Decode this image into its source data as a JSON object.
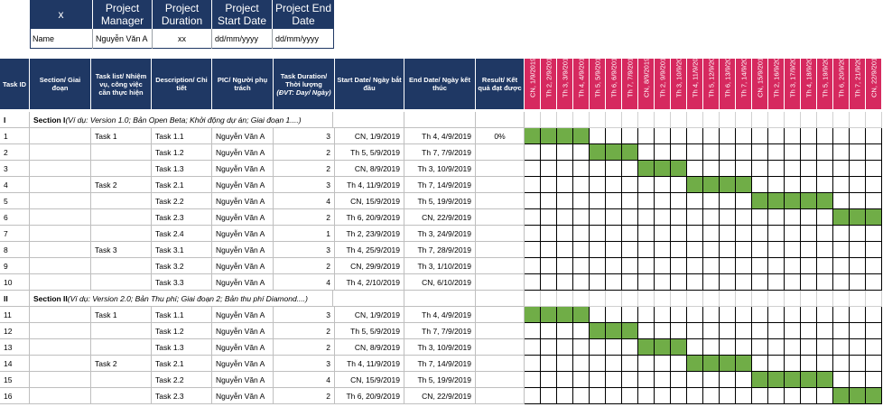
{
  "project": {
    "headers": [
      "x",
      "Project Manager",
      "Project Duration",
      "Project Start Date",
      "Project End Date"
    ],
    "values": [
      "Name",
      "Nguyễn Văn A",
      "xx",
      "dd/mm/yyyy",
      "dd/mm/yyyy"
    ]
  },
  "columns": {
    "task_id": "Task ID",
    "section": "Section/ Giai đoạn",
    "task_list": "Task list/ Nhiệm vụ, công việc cần thực hiện",
    "description": "Description/ Chi tiết",
    "pic": "PIC/ Người phụ trách",
    "duration": "Task Duration/ Thời lượng",
    "duration_unit": "(ĐVT: Day/ Ngày)",
    "start": "Start Date/ Ngày bắt đầu",
    "end": "End Date/ Ngày kết thúc",
    "result": "Result/ Kết quả đạt được"
  },
  "dates": [
    "CN, 1/9/2019",
    "Th 2, 2/9/2019",
    "Th 3, 3/9/2019",
    "Th 4, 4/9/2019",
    "Th 5, 5/9/2019",
    "Th 6, 6/9/2019",
    "Th 7, 7/9/2019",
    "CN, 8/9/2019",
    "Th 2, 9/9/2019",
    "Th 3, 10/9/2019",
    "Th 4, 11/9/2019",
    "Th 5, 12/9/2019",
    "Th 6, 13/9/2019",
    "Th 7, 14/9/2019",
    "CN, 15/9/2019",
    "Th 2, 16/9/2019",
    "Th 3, 17/9/2019",
    "Th 4, 18/9/2019",
    "Th 5, 19/9/2019",
    "Th 6, 20/9/2019",
    "Th 7, 21/9/2019",
    "CN, 22/9/2019"
  ],
  "rows": [
    {
      "type": "section",
      "id": "I",
      "title": "Section I",
      "note": "(Ví dụ: Version 1.0; Bản Open Beta; Khởi động dự án; Giai đoạn 1....)"
    },
    {
      "type": "task",
      "id": "1",
      "list": "Task 1",
      "desc": "Task 1.1",
      "pic": "Nguyễn Văn A",
      "dur": "3",
      "start": "CN, 1/9/2019",
      "end": "Th 4, 4/9/2019",
      "result": "0%",
      "g": [
        0,
        3
      ]
    },
    {
      "type": "task",
      "id": "2",
      "list": "",
      "desc": "Task 1.2",
      "pic": "Nguyễn Văn A",
      "dur": "2",
      "start": "Th 5, 5/9/2019",
      "end": "Th 7, 7/9/2019",
      "result": "",
      "g": [
        4,
        6
      ]
    },
    {
      "type": "task",
      "id": "3",
      "list": "",
      "desc": "Task 1.3",
      "pic": "Nguyễn Văn A",
      "dur": "2",
      "start": "CN, 8/9/2019",
      "end": "Th 3, 10/9/2019",
      "result": "",
      "g": [
        7,
        9
      ]
    },
    {
      "type": "task",
      "id": "4",
      "list": "Task 2",
      "desc": "Task 2.1",
      "pic": "Nguyễn Văn A",
      "dur": "3",
      "start": "Th 4, 11/9/2019",
      "end": "Th 7, 14/9/2019",
      "result": "",
      "g": [
        10,
        13
      ]
    },
    {
      "type": "task",
      "id": "5",
      "list": "",
      "desc": "Task 2.2",
      "pic": "Nguyễn Văn A",
      "dur": "4",
      "start": "CN, 15/9/2019",
      "end": "Th 5, 19/9/2019",
      "result": "",
      "g": [
        14,
        18
      ]
    },
    {
      "type": "task",
      "id": "6",
      "list": "",
      "desc": "Task 2.3",
      "pic": "Nguyễn Văn A",
      "dur": "2",
      "start": "Th 6, 20/9/2019",
      "end": "CN, 22/9/2019",
      "result": "",
      "g": [
        19,
        21
      ]
    },
    {
      "type": "task",
      "id": "7",
      "list": "",
      "desc": "Task 2.4",
      "pic": "Nguyễn Văn A",
      "dur": "1",
      "start": "Th 2, 23/9/2019",
      "end": "Th 3, 24/9/2019",
      "result": "",
      "g": null
    },
    {
      "type": "task",
      "id": "8",
      "list": "Task 3",
      "desc": "Task 3.1",
      "pic": "Nguyễn Văn A",
      "dur": "3",
      "start": "Th 4, 25/9/2019",
      "end": "Th 7, 28/9/2019",
      "result": "",
      "g": null
    },
    {
      "type": "task",
      "id": "9",
      "list": "",
      "desc": "Task 3.2",
      "pic": "Nguyễn Văn A",
      "dur": "2",
      "start": "CN, 29/9/2019",
      "end": "Th 3, 1/10/2019",
      "result": "",
      "g": null
    },
    {
      "type": "task",
      "id": "10",
      "list": "",
      "desc": "Task 3.3",
      "pic": "Nguyễn Văn A",
      "dur": "4",
      "start": "Th 4, 2/10/2019",
      "end": "CN, 6/10/2019",
      "result": "",
      "g": null
    },
    {
      "type": "section",
      "id": "II",
      "title": "Section II",
      "note": "(Ví dụ: Version 2.0; Bản Thu phí; Giai đoạn 2; Bản thu phí Diamond....)"
    },
    {
      "type": "task",
      "id": "11",
      "list": "Task 1",
      "desc": "Task 1.1",
      "pic": "Nguyễn Văn A",
      "dur": "3",
      "start": "CN, 1/9/2019",
      "end": "Th 4, 4/9/2019",
      "result": "",
      "g": [
        0,
        3
      ]
    },
    {
      "type": "task",
      "id": "12",
      "list": "",
      "desc": "Task 1.2",
      "pic": "Nguyễn Văn A",
      "dur": "2",
      "start": "Th 5, 5/9/2019",
      "end": "Th 7, 7/9/2019",
      "result": "",
      "g": [
        4,
        6
      ]
    },
    {
      "type": "task",
      "id": "13",
      "list": "",
      "desc": "Task 1.3",
      "pic": "Nguyễn Văn A",
      "dur": "2",
      "start": "CN, 8/9/2019",
      "end": "Th 3, 10/9/2019",
      "result": "",
      "g": [
        7,
        9
      ]
    },
    {
      "type": "task",
      "id": "14",
      "list": "Task 2",
      "desc": "Task 2.1",
      "pic": "Nguyễn Văn A",
      "dur": "3",
      "start": "Th 4, 11/9/2019",
      "end": "Th 7, 14/9/2019",
      "result": "",
      "g": [
        10,
        13
      ]
    },
    {
      "type": "task",
      "id": "15",
      "list": "",
      "desc": "Task 2.2",
      "pic": "Nguyễn Văn A",
      "dur": "4",
      "start": "CN, 15/9/2019",
      "end": "Th 5, 19/9/2019",
      "result": "",
      "g": [
        14,
        18
      ]
    },
    {
      "type": "task",
      "id": "16",
      "list": "",
      "desc": "Task 2.3",
      "pic": "Nguyễn Văn A",
      "dur": "2",
      "start": "Th 6, 20/9/2019",
      "end": "CN, 22/9/2019",
      "result": "",
      "g": [
        19,
        21
      ]
    }
  ],
  "colors": {
    "header": "#1f3864",
    "date_header": "#d6295f",
    "gantt_fill": "#70ad47"
  }
}
